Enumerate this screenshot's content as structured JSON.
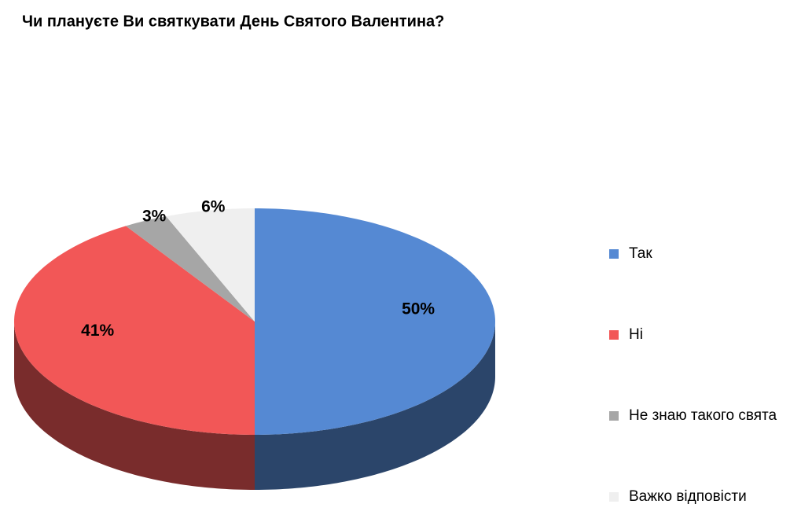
{
  "chart_data": {
    "type": "pie",
    "title": "Чи плануєте Ви святкувати День Святого Валентина?",
    "categories": [
      "Так",
      "Ні",
      "Не знаю такого свята",
      "Важко відповісти"
    ],
    "values": [
      50,
      41,
      3,
      6
    ],
    "value_labels": [
      "50%",
      "41%",
      "3%",
      "6%"
    ],
    "colors": [
      "#5589d3",
      "#f25757",
      "#a6a6a6",
      "#efefef"
    ],
    "legend": "right"
  }
}
